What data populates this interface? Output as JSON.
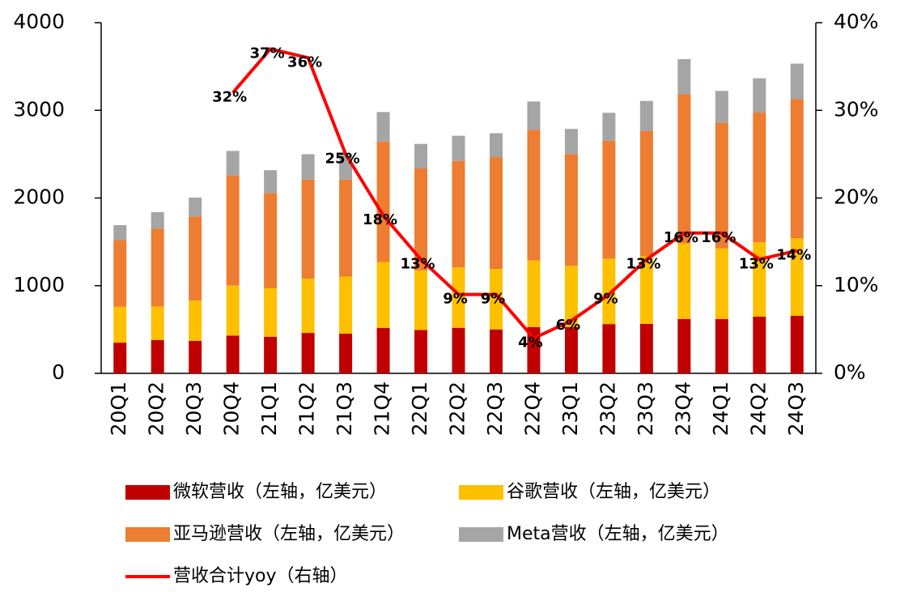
{
  "chart_data": {
    "type": "bar",
    "categories": [
      "20Q1",
      "20Q2",
      "20Q3",
      "20Q4",
      "21Q1",
      "21Q2",
      "21Q3",
      "21Q4",
      "22Q1",
      "22Q2",
      "22Q3",
      "22Q4",
      "23Q1",
      "23Q2",
      "23Q3",
      "23Q4",
      "24Q1",
      "24Q2",
      "24Q3"
    ],
    "series": [
      {
        "name": "微软营收（左轴，亿美元）",
        "color": "#c00000",
        "values": [
          350,
          380,
          370,
          431,
          417,
          461,
          453,
          517,
          494,
          520,
          501,
          527,
          529,
          562,
          565,
          620,
          619,
          647,
          656
        ]
      },
      {
        "name": "谷歌营收（左轴，亿美元）",
        "color": "#ffc000",
        "values": [
          410,
          383,
          460,
          570,
          553,
          619,
          650,
          753,
          680,
          690,
          690,
          760,
          698,
          746,
          770,
          863,
          805,
          847,
          883
        ]
      },
      {
        "name": "亚马逊营收（左轴，亿美元）",
        "color": "#ed7d31",
        "values": [
          755,
          889,
          960,
          1256,
          1085,
          1130,
          1108,
          1374,
          1164,
          1212,
          1271,
          1492,
          1274,
          1344,
          1431,
          1700,
          1434,
          1480,
          1588
        ]
      },
      {
        "name": "Meta营收（左轴，亿美元）",
        "color": "#a5a5a5",
        "values": [
          175,
          187,
          215,
          280,
          262,
          290,
          290,
          337,
          279,
          288,
          277,
          322,
          287,
          320,
          341,
          401,
          364,
          392,
          406
        ]
      },
      {
        "name": "营收合计yoy（右轴）",
        "color": "#ff0000",
        "type": "line",
        "axis": "y2",
        "values": [
          null,
          null,
          null,
          32,
          37,
          36,
          25,
          18,
          13,
          9,
          9,
          4,
          6,
          9,
          13,
          16,
          16,
          13,
          14
        ],
        "value_labels": [
          null,
          null,
          null,
          "32%",
          "37%",
          "36%",
          "25%",
          "18%",
          "13%",
          "9%",
          "9%",
          "4%",
          "6%",
          "9%",
          "13%",
          "16%",
          "16%",
          "13%",
          "14%"
        ]
      }
    ],
    "ylim": [
      0,
      4000
    ],
    "yticks": [
      0,
      1000,
      2000,
      3000,
      4000
    ],
    "y2lim": [
      0,
      40
    ],
    "y2ticks": [
      {
        "value": 0,
        "label": "0%"
      },
      {
        "value": 10,
        "label": "10%"
      },
      {
        "value": 20,
        "label": "20%"
      },
      {
        "value": 30,
        "label": "30%"
      },
      {
        "value": 40,
        "label": "40%"
      }
    ],
    "legend": "bottom"
  }
}
